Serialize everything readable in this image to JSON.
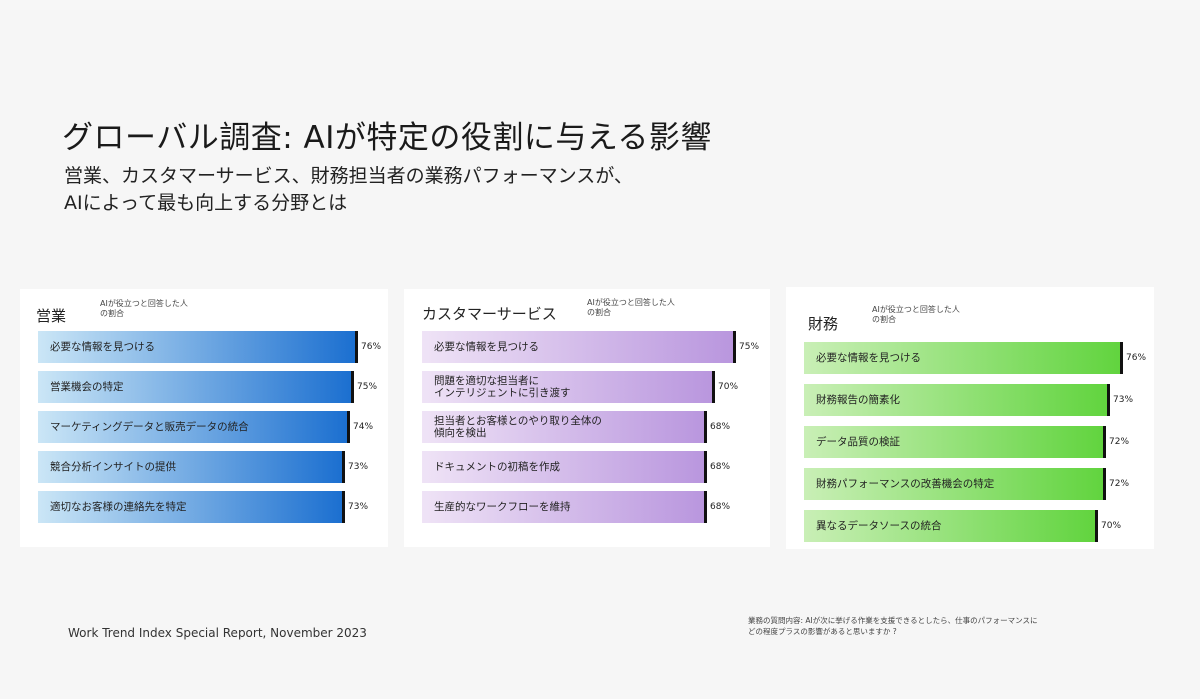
{
  "title": "グローバル調査: AIが特定の役割に与える影響",
  "subtitle_lines": [
    "営業、カスタマーサービス、財務担当者の業務パフォーマンスが、",
    "AIによって最も向上する分野とは"
  ],
  "source": "Work Trend Index Special Report, November 2023",
  "footnote_lines": [
    "業務の質問内容: AIが次に挙げる作業を支援できるとしたら、仕事のパフォーマンスに",
    "どの程度プラスの影響があると思いますか ?"
  ],
  "colors": {
    "sales_light": "#cbe6f6",
    "sales_dark": "#1b6fd0",
    "service_light": "#efe3f6",
    "service_dark": "#b996de",
    "finance_light": "#c9efb6",
    "finance_dark": "#61d43e"
  },
  "chart_data": [
    {
      "type": "bar",
      "orientation": "horizontal",
      "title": "営業",
      "legend_note": [
        "AIが役立つと回答した人",
        "の割合"
      ],
      "categories": [
        [
          "必要な情報を見つける"
        ],
        [
          "営業機会の特定"
        ],
        [
          "マーケティングデータと販売データの統合"
        ],
        [
          "競合分析インサイトの提供"
        ],
        [
          "適切なお客様の連絡先を特定"
        ]
      ],
      "values": [
        76,
        75,
        74,
        73,
        73
      ],
      "value_labels": [
        "76%",
        "75%",
        "74%",
        "73%",
        "73%"
      ]
    },
    {
      "type": "bar",
      "orientation": "horizontal",
      "title": "カスタマーサービス",
      "legend_note": [
        "AIが役立つと回答した人",
        "の割合"
      ],
      "categories": [
        [
          "必要な情報を見つける"
        ],
        [
          "問題を適切な担当者に",
          "インテリジェントに引き渡す"
        ],
        [
          "担当者とお客様とのやり取り全体の",
          "傾向を検出"
        ],
        [
          "ドキュメントの初稿を作成"
        ],
        [
          "生産的なワークフローを維持"
        ]
      ],
      "values": [
        75,
        70,
        68,
        68,
        68
      ],
      "value_labels": [
        "75%",
        "70%",
        "68%",
        "68%",
        "68%"
      ]
    },
    {
      "type": "bar",
      "orientation": "horizontal",
      "title": "財務",
      "legend_note": [
        "AIが役立つと回答した人",
        "の割合"
      ],
      "categories": [
        [
          "必要な情報を見つける"
        ],
        [
          "財務報告の簡素化"
        ],
        [
          "データ品質の検証"
        ],
        [
          "財務パフォーマンスの改善機会の特定"
        ],
        [
          "異なるデータソースの統合"
        ]
      ],
      "values": [
        76,
        73,
        72,
        72,
        70
      ],
      "value_labels": [
        "76%",
        "73%",
        "72%",
        "72%",
        "70%"
      ]
    }
  ]
}
